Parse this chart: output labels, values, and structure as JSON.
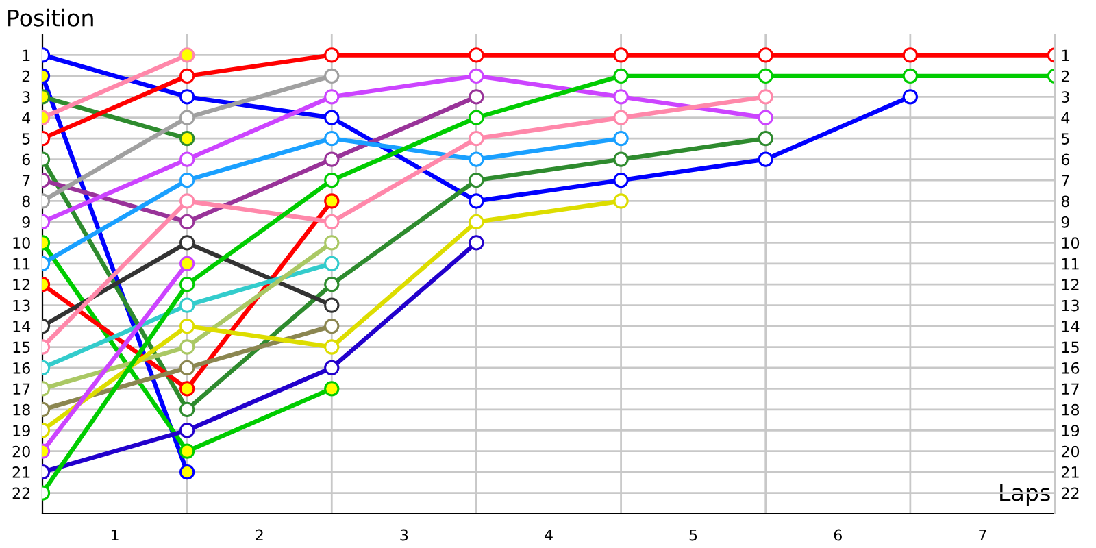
{
  "chart_data": {
    "type": "line",
    "xlabel": "Laps",
    "ylabel": "Position",
    "x": [
      0,
      1,
      2,
      3,
      4,
      5,
      6,
      7
    ],
    "xlim": [
      0,
      7
    ],
    "xticks": [
      {
        "value": 0.5,
        "label": "1"
      },
      {
        "value": 1.5,
        "label": "2"
      },
      {
        "value": 2.5,
        "label": "3"
      },
      {
        "value": 3.5,
        "label": "4"
      },
      {
        "value": 4.5,
        "label": "5"
      },
      {
        "value": 5.5,
        "label": "6"
      },
      {
        "value": 6.5,
        "label": "7"
      }
    ],
    "ylim": [
      23,
      0
    ],
    "yticks": [
      1,
      2,
      3,
      4,
      5,
      6,
      7,
      8,
      9,
      10,
      11,
      12,
      13,
      14,
      15,
      16,
      17,
      18,
      19,
      20,
      21,
      22
    ],
    "y2lim": [
      23,
      0
    ],
    "y2ticks": [
      1,
      2,
      3,
      4,
      5,
      6,
      7,
      8,
      9,
      10,
      11,
      12,
      13,
      14,
      15,
      16,
      17,
      18,
      19,
      20,
      21,
      22
    ],
    "grid": "y",
    "marker": "circle",
    "line_style": "solid",
    "ref_lines": [
      {
        "axis": "x",
        "value": 1,
        "color": "#c8c8c8"
      },
      {
        "axis": "x",
        "value": 2,
        "color": "#c8c8c8"
      },
      {
        "axis": "x",
        "value": 3,
        "color": "#c8c8c8"
      },
      {
        "axis": "x",
        "value": 4,
        "color": "#c8c8c8"
      },
      {
        "axis": "x",
        "value": 5,
        "color": "#c8c8c8"
      },
      {
        "axis": "x",
        "value": 6,
        "color": "#c8c8c8"
      }
    ],
    "series": [
      {
        "color": "#0000ff",
        "values": [
          1,
          3,
          4,
          8,
          7,
          6,
          3,
          null
        ],
        "colors": [
          "#ffffff",
          "#ffffff",
          "#ffffff",
          "#ffffff",
          "#ffffff",
          "#ffffff",
          "#ffffff",
          null
        ]
      },
      {
        "color": "#0000ff",
        "values": [
          2,
          21,
          null,
          null,
          null,
          null,
          null,
          null
        ],
        "colors": [
          "#ffff00",
          "#ffff00",
          null,
          null,
          null,
          null,
          null,
          null
        ]
      },
      {
        "color": "#2e8b2e",
        "values": [
          3,
          5,
          null,
          null,
          null,
          null,
          null,
          null
        ],
        "colors": [
          "#ffff00",
          "#ffff00",
          null,
          null,
          null,
          null,
          null,
          null
        ]
      },
      {
        "color": "#ff88aa",
        "values": [
          4,
          1,
          null,
          null,
          null,
          null,
          null,
          null
        ],
        "colors": [
          "#ffff00",
          "#ffff00",
          null,
          null,
          null,
          null,
          null,
          null
        ]
      },
      {
        "color": "#ff0000",
        "values": [
          5,
          2,
          1,
          1,
          1,
          1,
          1,
          1
        ],
        "colors": [
          "#ffffff",
          "#ffffff",
          "#ffffff",
          "#ffffff",
          "#ffffff",
          "#ffffff",
          "#ffffff",
          "#ffffff"
        ]
      },
      {
        "color": "#2e8b2e",
        "values": [
          6,
          18,
          12,
          7,
          6,
          5,
          null,
          null
        ],
        "colors": [
          "#ffffff",
          "#ffffff",
          "#ffffff",
          "#ffffff",
          "#ffffff",
          "#ffffff",
          null,
          null
        ]
      },
      {
        "color": "#993399",
        "values": [
          7,
          9,
          6,
          3,
          null,
          null,
          null,
          null
        ],
        "colors": [
          "#ffffff",
          "#ffffff",
          "#ffffff",
          "#ffffff",
          null,
          null,
          null,
          null
        ]
      },
      {
        "color": "#a0a0a0",
        "values": [
          8,
          4,
          2,
          null,
          null,
          null,
          null,
          null
        ],
        "colors": [
          "#ffffff",
          "#ffffff",
          "#ffffff",
          null,
          null,
          null,
          null,
          null
        ]
      },
      {
        "color": "#cc44ff",
        "values": [
          9,
          6,
          3,
          2,
          3,
          4,
          null,
          null
        ],
        "colors": [
          "#ffffff",
          "#ffffff",
          "#ffffff",
          "#ffffff",
          "#ffffff",
          "#ffffff",
          null,
          null
        ]
      },
      {
        "color": "#00cc00",
        "values": [
          10,
          20,
          17,
          null,
          null,
          null,
          null,
          null
        ],
        "colors": [
          "#ffff00",
          "#ffff00",
          "#ffff00",
          null,
          null,
          null,
          null,
          null
        ]
      },
      {
        "color": "#1aa0ff",
        "values": [
          11,
          7,
          5,
          6,
          5,
          null,
          null,
          null
        ],
        "colors": [
          "#ffffff",
          "#ffffff",
          "#ffffff",
          "#ffffff",
          "#ffffff",
          null,
          null,
          null
        ]
      },
      {
        "color": "#ff0000",
        "values": [
          12,
          17,
          8,
          null,
          null,
          null,
          null,
          null
        ],
        "colors": [
          "#ffff00",
          "#ffff00",
          "#ffff00",
          null,
          null,
          null,
          null,
          null
        ]
      },
      {
        "color": "#333333",
        "values": [
          14,
          10,
          13,
          null,
          null,
          null,
          null,
          null
        ],
        "colors": [
          "#ffffff",
          "#ffffff",
          "#ffffff",
          null,
          null,
          null,
          null,
          null
        ]
      },
      {
        "color": "#ff88aa",
        "values": [
          15,
          8,
          9,
          5,
          4,
          3,
          null,
          null
        ],
        "colors": [
          "#ffffff",
          "#ffffff",
          "#ffffff",
          "#ffffff",
          "#ffffff",
          "#ffffff",
          null,
          null
        ]
      },
      {
        "color": "#33cccc",
        "values": [
          16,
          13,
          11,
          null,
          null,
          null,
          null,
          null
        ],
        "colors": [
          "#ffffff",
          "#ffffff",
          "#ffffff",
          null,
          null,
          null,
          null,
          null
        ]
      },
      {
        "color": "#aac864",
        "values": [
          17,
          15,
          10,
          null,
          null,
          null,
          null,
          null
        ],
        "colors": [
          "#ffffff",
          "#ffffff",
          "#ffffff",
          null,
          null,
          null,
          null,
          null
        ]
      },
      {
        "color": "#8b8650",
        "values": [
          18,
          16,
          14,
          null,
          null,
          null,
          null,
          null
        ],
        "colors": [
          "#ffffff",
          "#ffffff",
          "#ffffff",
          null,
          null,
          null,
          null,
          null
        ]
      },
      {
        "color": "#dddd00",
        "values": [
          19,
          14,
          15,
          9,
          8,
          null,
          null,
          null
        ],
        "colors": [
          "#ffffff",
          "#ffffff",
          "#ffffff",
          "#ffffff",
          "#ffffff",
          null,
          null,
          null
        ]
      },
      {
        "color": "#cc44ff",
        "values": [
          20,
          11,
          null,
          null,
          null,
          null,
          null,
          null
        ],
        "colors": [
          "#ffff00",
          "#ffff00",
          null,
          null,
          null,
          null,
          null,
          null
        ]
      },
      {
        "color": "#2200cc",
        "values": [
          21,
          19,
          16,
          10,
          null,
          null,
          null,
          null
        ],
        "colors": [
          "#ffffff",
          "#ffffff",
          "#ffffff",
          "#ffffff",
          null,
          null,
          null,
          null
        ]
      },
      {
        "color": "#00cc00",
        "values": [
          22,
          12,
          7,
          4,
          2,
          2,
          2,
          2
        ],
        "colors": [
          "#ffffff",
          "#ffffff",
          "#ffffff",
          "#ffffff",
          "#ffffff",
          "#ffffff",
          "#ffffff",
          "#ffffff"
        ]
      }
    ]
  }
}
